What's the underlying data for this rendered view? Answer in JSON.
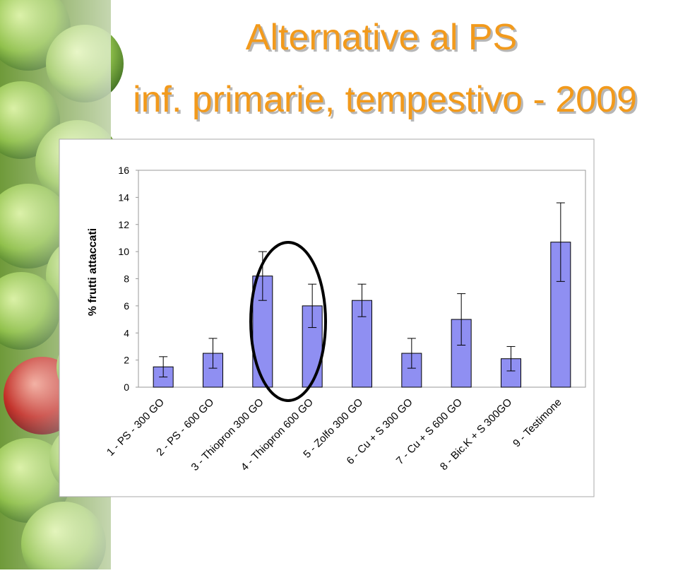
{
  "chart_data": {
    "type": "bar",
    "title": "Alternative al PS",
    "subtitle": "inf. primarie, tempestivo - 2009",
    "y_label": "% frutti attaccati",
    "categories": [
      "1 - PS - 300 GO",
      "2 - PS - 600 GO",
      "3 - Thiopron 300 GO",
      "4 - Thiopron 600 GO",
      "5 - Zolfo 300 GO",
      "6 - Cu + S 300 GO",
      "7 - Cu + S 600 GO",
      "8 - Bic.K + S 300GO",
      "9 - Testimone"
    ],
    "values": [
      1.5,
      2.5,
      8.2,
      6.0,
      6.4,
      2.5,
      5.0,
      2.1,
      10.7
    ],
    "errors": [
      0.75,
      1.1,
      1.8,
      1.6,
      1.2,
      1.1,
      1.9,
      0.9,
      2.9
    ],
    "color": "#8f8ff2",
    "ylim": [
      0,
      16
    ],
    "yticks": [
      0,
      2,
      4,
      6,
      8,
      10,
      12,
      14,
      16
    ],
    "grid": false
  }
}
